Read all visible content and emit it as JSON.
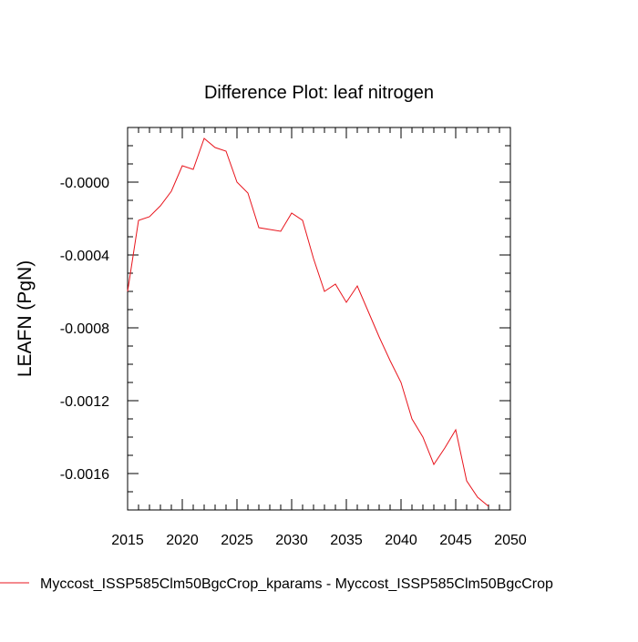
{
  "chart_data": {
    "type": "line",
    "title": "Difference Plot: leaf nitrogen",
    "xlabel": "",
    "ylabel": "LEAFN  (PgN)",
    "xlim": [
      2015,
      2050
    ],
    "ylim": [
      -0.0018,
      0.0003
    ],
    "xticks": [
      2015,
      2020,
      2025,
      2030,
      2035,
      2040,
      2045,
      2050
    ],
    "xtick_labels": [
      "2015",
      "2020",
      "2025",
      "2030",
      "2035",
      "2040",
      "2045",
      "2050"
    ],
    "yticks": [
      0.0,
      -0.0004,
      -0.0008,
      -0.0012,
      -0.0016
    ],
    "ytick_labels": [
      "-0.0000",
      "-0.0004",
      "-0.0008",
      "-0.0012",
      "-0.0016"
    ],
    "grid": false,
    "legend_position": "bottom-left",
    "series": [
      {
        "name": "Myccost_ISSP585Clm50BgcCrop_kparams - Myccost_ISSP585Clm50BgcCrop",
        "color": "#e8141c",
        "x": [
          2015,
          2016,
          2017,
          2018,
          2019,
          2020,
          2021,
          2022,
          2023,
          2024,
          2025,
          2026,
          2027,
          2028,
          2029,
          2030,
          2031,
          2032,
          2033,
          2034,
          2035,
          2036,
          2037,
          2038,
          2039,
          2040,
          2041,
          2042,
          2043,
          2044,
          2045,
          2046,
          2047,
          2048
        ],
        "y": [
          -0.0006,
          -0.00021,
          -0.00019,
          -0.00013,
          -5e-05,
          9e-05,
          7e-05,
          0.00024,
          0.00019,
          0.00017,
          0.0,
          -6e-05,
          -0.00025,
          -0.00026,
          -0.00027,
          -0.00017,
          -0.00021,
          -0.00042,
          -0.0006,
          -0.00056,
          -0.00066,
          -0.00057,
          -0.00071,
          -0.00085,
          -0.00098,
          -0.0011,
          -0.0013,
          -0.0014,
          -0.00155,
          -0.00146,
          -0.00136,
          -0.00164,
          -0.00173,
          -0.00178
        ]
      }
    ]
  }
}
